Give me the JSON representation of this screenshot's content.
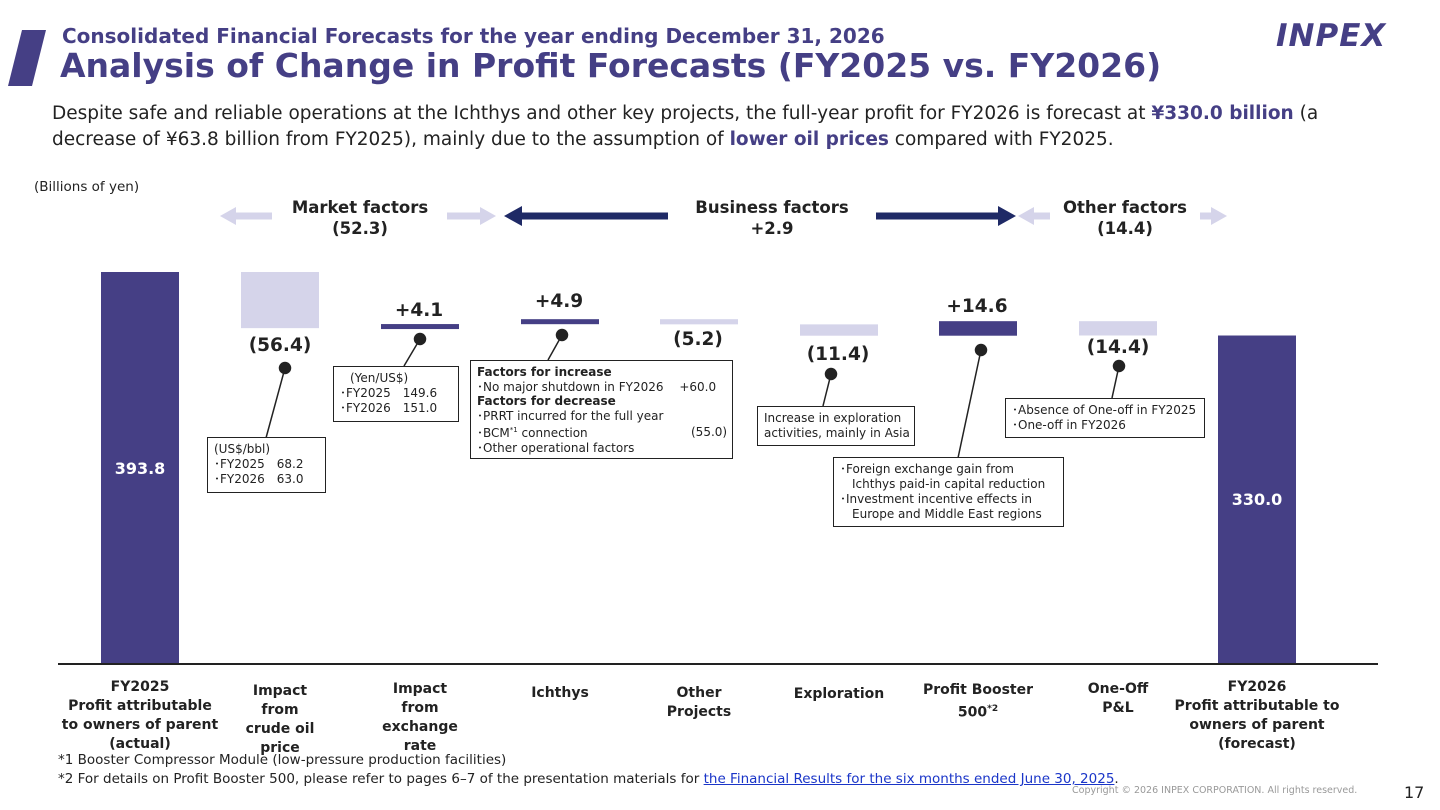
{
  "header": {
    "subtitle": "Consolidated Financial Forecasts for the year ending December 31, 2026",
    "title": "Analysis of Change in Profit Forecasts (FY2025 vs. FY2026)",
    "logo_text": "INPEX"
  },
  "summary": {
    "part1": "Despite safe and reliable operations at the Ichthys and other key projects, the full-year profit for FY2026 is forecast at ",
    "highlight1": "¥330.0 billion",
    "part2": " (a decrease of ¥63.8 billion from FY2025), mainly due to the assumption of ",
    "highlight2": "lower oil prices",
    "part3": " compared with FY2025."
  },
  "colors": {
    "dark": "#453f85",
    "light": "#d5d4ea",
    "arrow_dark": "#1f2a66",
    "arrow_light": "#d5d4ea"
  },
  "chart_data": {
    "type": "bar",
    "subtype": "waterfall",
    "unit_label": "(Billions of yen)",
    "ylim": [
      0,
      400
    ],
    "categories": [
      "FY2025\nProfit attributable\nto owners of parent\n(actual)",
      "Impact\nfrom\ncrude oil\nprice",
      "Impact\nfrom\nexchange\nrate",
      "Ichthys",
      "Other\nProjects",
      "Exploration",
      "Profit Booster\n500*2",
      "One-Off\nP&L",
      "FY2026\nProfit attributable to\nowners of parent\n(forecast)"
    ],
    "values": [
      393.8,
      -56.4,
      4.1,
      4.9,
      -5.2,
      -11.4,
      14.6,
      -14.4,
      330.0
    ],
    "bar_kinds": [
      "total",
      "delta",
      "delta",
      "delta",
      "delta",
      "delta",
      "delta",
      "delta",
      "total"
    ],
    "value_labels": [
      "393.8",
      "(56.4)",
      "+4.1",
      "+4.9",
      "(5.2)",
      "(11.4)",
      "+14.6",
      "(14.4)",
      "330.0"
    ],
    "factor_groups": [
      {
        "name": "Market factors",
        "value": "(52.3)"
      },
      {
        "name": "Business factors",
        "value": "+2.9"
      },
      {
        "name": "Other factors",
        "value": "(14.4)"
      }
    ],
    "annotations": {
      "crude": [
        "(US$/bbl)",
        "･FY2025　68.2",
        "･FY2026　63.0"
      ],
      "fx": [
        "(Yen/US$)",
        "･FY2025　149.6",
        "･FY2026　151.0"
      ],
      "ichthys": {
        "increase_title": "Factors for increase",
        "increase_item": "･No major shutdown in FY2026",
        "increase_value": "+60.0",
        "decrease_title": "Factors for decrease",
        "decrease_items": [
          "･PRRT incurred for the full year",
          "･BCM",
          "*1",
          " connection",
          "･Other operational factors"
        ],
        "decrease_value": "(55.0)"
      },
      "exploration": [
        "Increase in exploration",
        "activities, mainly in Asia"
      ],
      "booster": [
        "･Foreign exchange gain from",
        "　Ichthys paid-in capital reduction",
        "･Investment incentive effects in",
        "　Europe and Middle East regions"
      ],
      "oneoff": [
        "･Absence of One-off in FY2025",
        "･One-off in FY2026"
      ]
    }
  },
  "footnotes": {
    "note1": "*1 Booster Compressor Module (low-pressure production facilities)",
    "note2_prefix": "*2 For details on Profit Booster 500, please refer to pages 6–7 of the presentation materials for ",
    "note2_link": "the Financial Results for the six months ended June 30, 2025",
    "note2_suffix": "."
  },
  "copyright": "Copyright © 2026 INPEX CORPORATION. All rights reserved.",
  "page_number": "17"
}
